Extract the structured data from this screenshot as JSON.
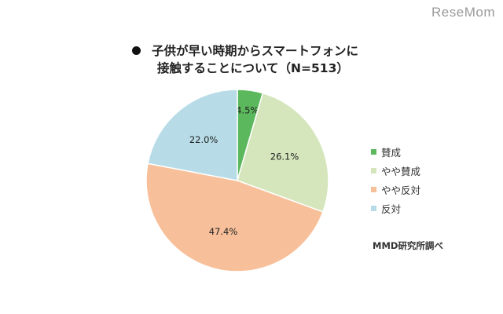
{
  "watermark": "ReseMom",
  "title_line1": "子供が早い時期からスマートフォンに",
  "title_line2": "接触することについて（N=513）",
  "source": "MMD研究所調べ",
  "colors": {
    "賛成": "#5cb85c",
    "やや賛成": "#d5e6bc",
    "やや反対": "#f7c09a",
    "反対": "#b7dce8"
  },
  "chart_data": {
    "type": "pie",
    "title": "子供が早い時期からスマートフォンに接触することについて（N=513）",
    "start": "top",
    "direction": "clockwise",
    "slices": [
      {
        "label": "賛成",
        "value": 4.5,
        "display": "4.5%",
        "color": "#5cb85c"
      },
      {
        "label": "やや賛成",
        "value": 26.1,
        "display": "26.1%",
        "color": "#d5e6bc"
      },
      {
        "label": "やや反対",
        "value": 47.4,
        "display": "47.4%",
        "color": "#f7c09a"
      },
      {
        "label": "反対",
        "value": 22.0,
        "display": "22.0%",
        "color": "#b7dce8"
      }
    ],
    "legend": [
      "賛成",
      "やや賛成",
      "やや反対",
      "反対"
    ],
    "legend_position": "right"
  }
}
